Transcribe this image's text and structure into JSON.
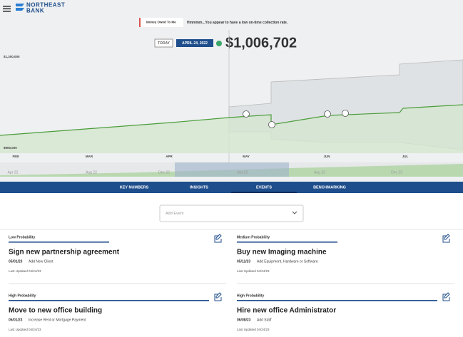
{
  "header": {
    "logo_top": "NORTHEAST",
    "logo_bottom": "BANK"
  },
  "chart": {
    "legend": "Money Owed To Me",
    "message": "Hmmmm...You appear to have a low on-time collection rate.",
    "today_button": "TODAY",
    "date": "APRIL 24, 2022",
    "amount": "$1,006,702",
    "ylim": [
      900000,
      1300000
    ],
    "yticks": [
      {
        "value": 1300000,
        "label": "$1,300,000"
      },
      {
        "value": 900000,
        "label": "$900,000"
      }
    ],
    "months": [
      "FEB",
      "MAR",
      "APR",
      "MAY",
      "JUN",
      "JUL"
    ],
    "navigator": [
      "Apr 22",
      "Aug 22",
      "Dec 22",
      "Apr 23",
      "Aug 23",
      "Dec 23"
    ]
  },
  "tabs": [
    "KEY NUMBERS",
    "INSIGHTS",
    "EVENTS",
    "BENCHMARKING"
  ],
  "active_tab": 2,
  "dropdown": "Add Event",
  "cards": [
    {
      "probability": "Low Probability",
      "title": "Sign new partnership agreement",
      "date": "05/01/23",
      "category": "Add New Client",
      "updated": "Last Updated 04/24/23"
    },
    {
      "probability": "Medium Probability",
      "title": "Buy new Imaging machine",
      "date": "05/11/23",
      "category": "Add Equipment, Hardware or Software",
      "updated": "Last Updated 04/24/23"
    },
    {
      "probability": "High Probability",
      "title": "Move to new office building",
      "date": "06/01/23",
      "category": "Increase Rent or Mortgage Payment",
      "updated": "Last Updated 04/24/23"
    },
    {
      "probability": "High Probability",
      "title": "Hire new office Administrator",
      "date": "06/08/23",
      "category": "Add Staff",
      "updated": "Last Updated 04/24/23"
    }
  ]
}
